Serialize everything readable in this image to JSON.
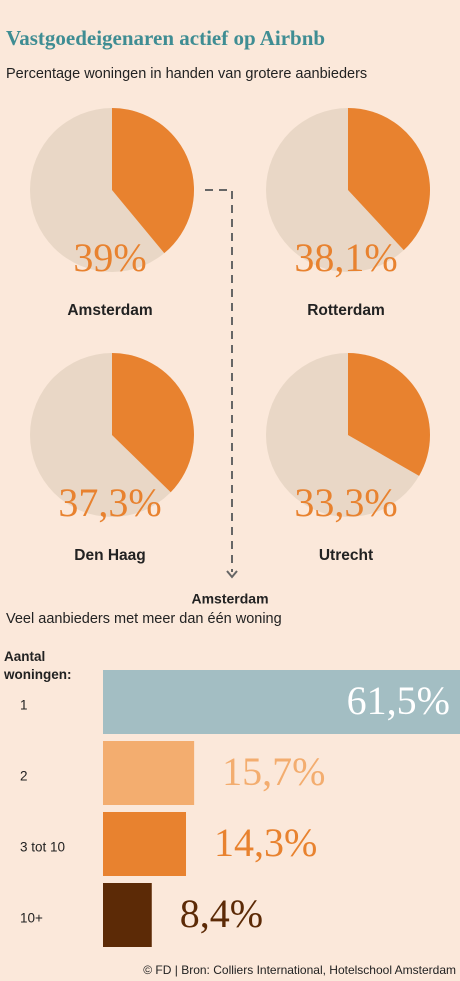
{
  "title": "Vastgoedeigenaren actief op Airbnb",
  "subtitle": "Percentage woningen in handen van grotere aanbieders",
  "source": "© FD | Bron: Colliers International, Hotelschool Amsterdam",
  "chart_data": [
    {
      "type": "pie",
      "title": "Amsterdam",
      "values": [
        39
      ],
      "value_labels": [
        "39%"
      ],
      "color": "#e8822f"
    },
    {
      "type": "pie",
      "title": "Rotterdam",
      "values": [
        38.1
      ],
      "value_labels": [
        "38,1%"
      ],
      "color": "#e8822f"
    },
    {
      "type": "pie",
      "title": "Den Haag",
      "values": [
        37.3
      ],
      "value_labels": [
        "37,3%"
      ],
      "color": "#e8822f"
    },
    {
      "type": "pie",
      "title": "Utrecht",
      "values": [
        33.3
      ],
      "value_labels": [
        "33,3%"
      ],
      "color": "#e8822f"
    },
    {
      "type": "bar",
      "orientation": "horizontal",
      "title": "Amsterdam",
      "subtitle": "Veel aanbieders met meer dan één woning",
      "y_label": "Aantal woningen:",
      "categories": [
        "1",
        "2",
        "3 tot 10",
        "10+"
      ],
      "values": [
        61.5,
        15.7,
        14.3,
        8.4
      ],
      "value_labels": [
        "61,5%",
        "15,7%",
        "14,3%",
        "8,4%"
      ],
      "colors": [
        "#a3bec3",
        "#f3ad6f",
        "#e8822f",
        "#5c2a06"
      ]
    }
  ]
}
